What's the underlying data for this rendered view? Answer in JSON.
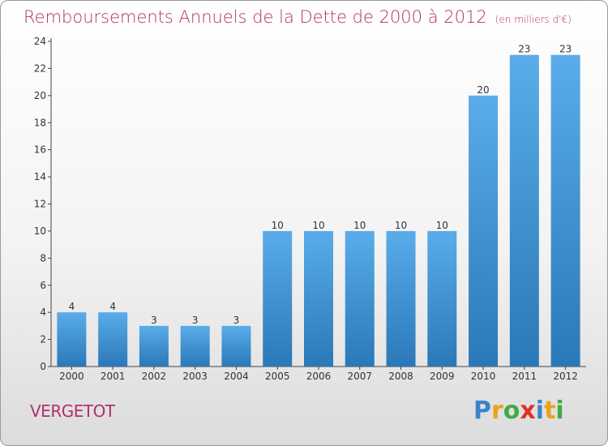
{
  "header": {
    "title": "Remboursements Annuels de la Dette de 2000 à 2012",
    "unit": "(en milliers d'€)"
  },
  "footer": {
    "commune": "VERGETOT",
    "logo_text": "Proxiti",
    "logo_colors": [
      "#3a84c9",
      "#e8a21a",
      "#46a844",
      "#e2302a",
      "#3a84c9",
      "#e8a21a",
      "#46a844"
    ]
  },
  "colors": {
    "title": "#b0306d",
    "bar_top": "#5aacea",
    "bar_bottom": "#2a78b8",
    "axis": "#444444"
  },
  "chart_data": {
    "type": "bar",
    "categories": [
      "2000",
      "2001",
      "2002",
      "2003",
      "2004",
      "2005",
      "2006",
      "2007",
      "2008",
      "2009",
      "2010",
      "2011",
      "2012"
    ],
    "values": [
      4,
      4,
      3,
      3,
      3,
      10,
      10,
      10,
      10,
      10,
      20,
      23,
      23
    ],
    "data_labels": [
      "4",
      "4",
      "3",
      "3",
      "3",
      "10",
      "10",
      "10",
      "10",
      "10",
      "20",
      "23",
      "23"
    ],
    "yticks": [
      0,
      2,
      4,
      6,
      8,
      10,
      12,
      14,
      16,
      18,
      20,
      22,
      24
    ],
    "ylim": [
      0,
      24
    ],
    "grid": false,
    "title": "Remboursements Annuels de la Dette de 2000 à 2012",
    "xlabel": "",
    "ylabel": ""
  }
}
